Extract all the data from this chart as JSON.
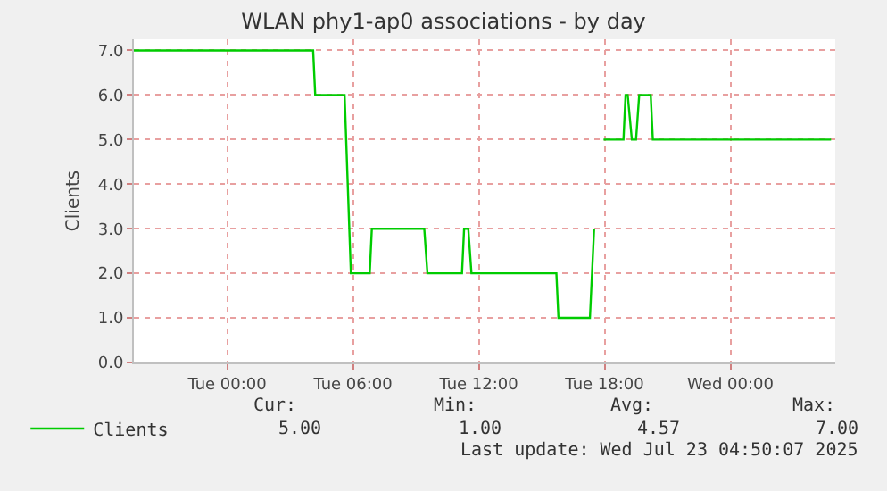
{
  "chart_data": {
    "type": "line",
    "title": "WLAN phy1-ap0 associations - by day",
    "ylabel": "Clients",
    "x": [
      "2025-07-21T19:33",
      "2025-07-22T04:06",
      "2025-07-22T04:12",
      "2025-07-22T05:36",
      "2025-07-22T05:54",
      "2025-07-22T06:48",
      "2025-07-22T06:54",
      "2025-07-22T09:24",
      "2025-07-22T09:33",
      "2025-07-22T11:12",
      "2025-07-22T11:18",
      "2025-07-22T11:30",
      "2025-07-22T11:39",
      "2025-07-22T15:42",
      "2025-07-22T15:48",
      "2025-07-22T17:18",
      "2025-07-22T17:30",
      "2025-07-22T17:42",
      "2025-07-22T17:57",
      "2025-07-22T18:54",
      "2025-07-22T19:00",
      "2025-07-22T19:06",
      "2025-07-22T19:18",
      "2025-07-22T19:30",
      "2025-07-22T19:39",
      "2025-07-22T20:12",
      "2025-07-22T20:18",
      "2025-07-23T04:48"
    ],
    "series": [
      {
        "name": "Clients",
        "color": "#00cc00",
        "values": [
          7,
          7,
          6,
          6,
          2,
          2,
          3,
          3,
          2,
          2,
          3,
          3,
          2,
          2,
          1,
          1,
          3,
          null,
          5,
          5,
          6,
          6,
          5,
          5,
          6,
          6,
          5,
          5
        ]
      }
    ],
    "xlim": [
      "2025-07-21T19:33",
      "2025-07-23T05:00"
    ],
    "xticks": [
      {
        "value": "2025-07-22T00:00",
        "label": "Tue 00:00"
      },
      {
        "value": "2025-07-22T06:00",
        "label": "Tue 06:00"
      },
      {
        "value": "2025-07-22T12:00",
        "label": "Tue 12:00"
      },
      {
        "value": "2025-07-22T18:00",
        "label": "Tue 18:00"
      },
      {
        "value": "2025-07-23T00:00",
        "label": "Wed 00:00"
      }
    ],
    "ylim": [
      0,
      7.25
    ],
    "yticks": [
      {
        "value": 0,
        "label": "0.0"
      },
      {
        "value": 1,
        "label": "1.0"
      },
      {
        "value": 2,
        "label": "2.0"
      },
      {
        "value": 3,
        "label": "3.0"
      },
      {
        "value": 4,
        "label": "4.0"
      },
      {
        "value": 5,
        "label": "5.0"
      },
      {
        "value": 6,
        "label": "6.0"
      },
      {
        "value": 7,
        "label": "7.0"
      }
    ],
    "grid": true,
    "legend": "bottom left",
    "marker": "none",
    "line_style": "solid",
    "annotations": [
      "Cur:",
      "Min:",
      "Avg:",
      "Max:",
      "5.00",
      "1.00",
      "4.57",
      "7.00",
      "Last update: Wed Jul 23 04:50:07 2025"
    ]
  }
}
